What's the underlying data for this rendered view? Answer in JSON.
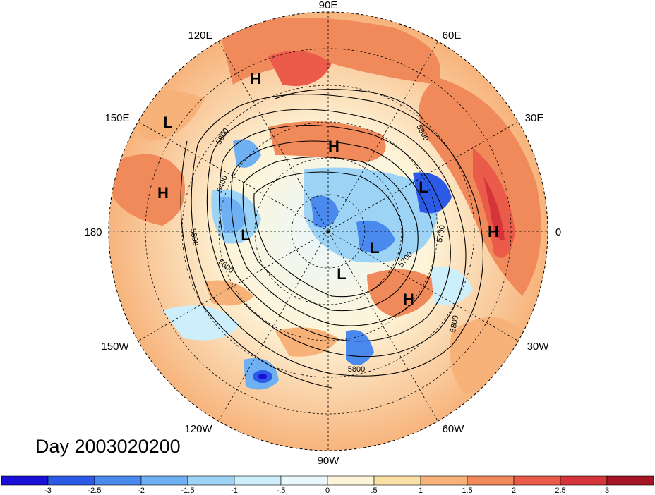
{
  "title": "Day 2003020200",
  "longitude_labels": [
    "90E",
    "60E",
    "30E",
    "0",
    "30W",
    "60W",
    "90W",
    "120W",
    "150W",
    "180",
    "150E",
    "120E"
  ],
  "pressure_systems": [
    {
      "type": "H"
    },
    {
      "type": "L"
    },
    {
      "type": "H"
    },
    {
      "type": "H"
    },
    {
      "type": "L"
    },
    {
      "type": "L"
    },
    {
      "type": "L"
    },
    {
      "type": "L"
    },
    {
      "type": "H"
    },
    {
      "type": "H"
    }
  ],
  "contour_labels": [
    "5800",
    "5400",
    "5800",
    "5600",
    "5800",
    "5700",
    "5700",
    "5800",
    "5800"
  ],
  "colorbar": {
    "ticks": [
      "-3",
      "-2.5",
      "-2",
      "-1.5",
      "-1",
      "-.5",
      "0",
      ".5",
      "1",
      "1.5",
      "2",
      "2.5",
      "3"
    ],
    "colors": [
      "#1a0fd6",
      "#2b5be6",
      "#4a8aee",
      "#6fb0f3",
      "#9dd4f6",
      "#cdeefb",
      "#e9f8fd",
      "#fdf5d9",
      "#fbe0a6",
      "#f7b27a",
      "#f08a5b",
      "#eb5b4a",
      "#d4343a",
      "#a41425"
    ]
  }
}
